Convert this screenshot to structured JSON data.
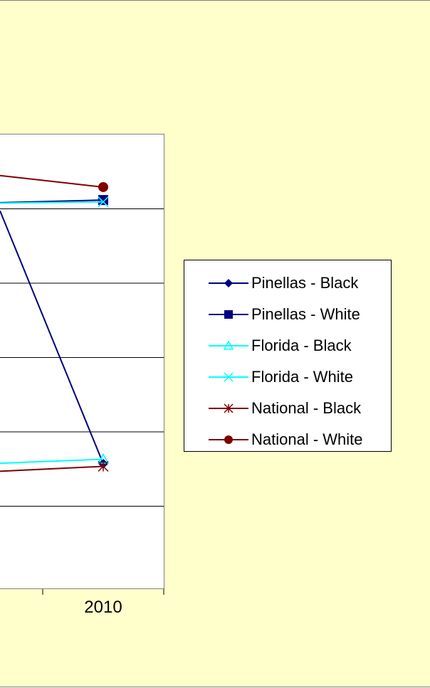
{
  "chart_data": {
    "type": "line",
    "x_visible": [
      2010
    ],
    "x_tick_labels": [
      "2010"
    ],
    "y_gridlines": 6,
    "grid": true,
    "legend_position": "right",
    "series": [
      {
        "name": "Pinellas - Black",
        "color": "#000080",
        "marker": "diamond",
        "level": 0.262
      },
      {
        "name": "Pinellas - White",
        "color": "#000080",
        "marker": "square",
        "level": 0.853
      },
      {
        "name": "Florida - Black",
        "color": "#00ffff",
        "marker": "triangle",
        "level": 0.272
      },
      {
        "name": "Florida - White",
        "color": "#00ffff",
        "marker": "x",
        "level": 0.849
      },
      {
        "name": "National - Black",
        "color": "#800000",
        "marker": "star",
        "level": 0.256
      },
      {
        "name": "National - White",
        "color": "#800000",
        "marker": "circle",
        "level": 0.882
      }
    ],
    "series_left_edge_level": [
      0.829,
      0.847,
      0.263,
      0.846,
      0.245,
      0.908
    ]
  }
}
